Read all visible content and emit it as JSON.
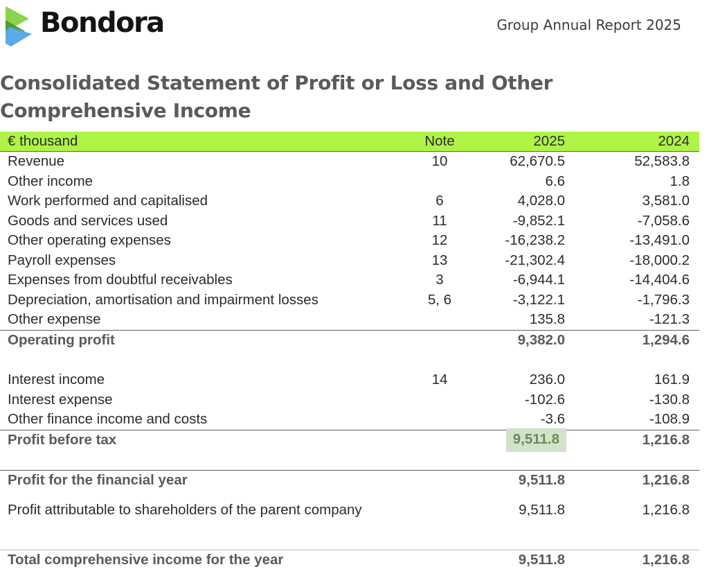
{
  "header": {
    "brand": "Bondora",
    "report_title": "Group Annual Report 2025"
  },
  "title": {
    "line1": "Consolidated Statement of Profit or Loss and Other",
    "line2": "Comprehensive Income"
  },
  "table": {
    "columns": [
      "€ thousand",
      "Note",
      "2025",
      "2024"
    ],
    "rows": [
      {
        "label": "Revenue",
        "note": "10",
        "y2025": "62,670.5",
        "y2024": "52,583.8"
      },
      {
        "label": "Other income",
        "note": "",
        "y2025": "6.6",
        "y2024": "1.8"
      },
      {
        "label": "Work performed and capitalised",
        "note": "6",
        "y2025": "4,028.0",
        "y2024": "3,581.0"
      },
      {
        "label": "Goods and services used",
        "note": "11",
        "y2025": "-9,852.1",
        "y2024": "-7,058.6"
      },
      {
        "label": "Other operating expenses",
        "note": "12",
        "y2025": "-16,238.2",
        "y2024": "-13,491.0"
      },
      {
        "label": "Payroll expenses",
        "note": "13",
        "y2025": "-21,302.4",
        "y2024": "-18,000.2"
      },
      {
        "label": "Expenses from doubtful receivables",
        "note": "3",
        "y2025": "-6,944.1",
        "y2024": "-14,404.6"
      },
      {
        "label": "Depreciation, amortisation and impairment losses",
        "note": "5, 6",
        "y2025": "-3,122.1",
        "y2024": "-1,796.3"
      },
      {
        "label": "Other expense",
        "note": "",
        "y2025": "135.8",
        "y2024": "-121.3"
      },
      {
        "label": "Operating profit",
        "note": "",
        "y2025": "9,382.0",
        "y2024": "1,294.6"
      },
      {
        "label": "Interest income",
        "note": "14",
        "y2025": "236.0",
        "y2024": "161.9"
      },
      {
        "label": "Interest expense",
        "note": "",
        "y2025": "-102.6",
        "y2024": "-130.8"
      },
      {
        "label": "Other finance income and costs",
        "note": "",
        "y2025": "-3.6",
        "y2024": "-108.9"
      },
      {
        "label": "Profit before tax",
        "note": "",
        "y2025": "9,511.8",
        "y2024": "1,216.8"
      },
      {
        "label": "Profit for the financial year",
        "note": "",
        "y2025": "9,511.8",
        "y2024": "1,216.8"
      },
      {
        "label": "Profit attributable to shareholders of the parent company",
        "note": "",
        "y2025": "9,511.8",
        "y2024": "1,216.8"
      },
      {
        "label": "Total comprehensive income for the year",
        "note": "",
        "y2025": "9,511.8",
        "y2024": "1,216.8"
      }
    ]
  },
  "colors": {
    "header_band": "#b0f347",
    "highlight": "#d2e3cb",
    "logo_green": "#67c84a",
    "logo_blue": "#5aa9e8"
  },
  "icons": {
    "logo": "bondora-logo-icon"
  }
}
